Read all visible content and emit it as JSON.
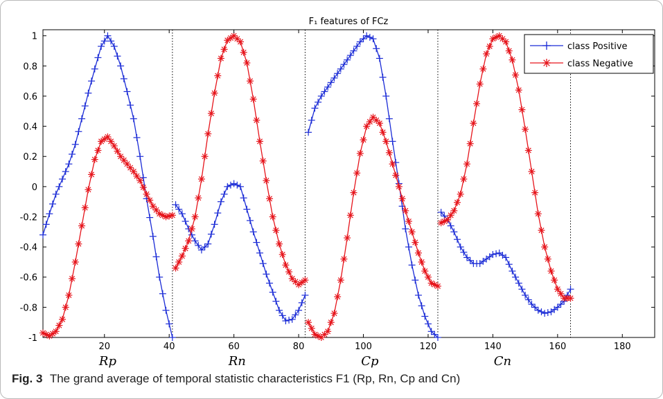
{
  "caption": {
    "fig_label": "Fig. 3",
    "text": "The grand average of temporal statistic characteristics F1 (Rp, Rn, Cp and Cn)"
  },
  "chart_data": {
    "type": "line",
    "title": "F₁ features of FCz",
    "xlabel": "",
    "ylabel": "",
    "xlim": [
      1,
      190
    ],
    "ylim": [
      -1,
      1.04
    ],
    "xticks": [
      20,
      40,
      60,
      80,
      100,
      120,
      140,
      160,
      180
    ],
    "yticks": [
      -1,
      -0.8,
      -0.6,
      -0.4,
      -0.2,
      0,
      0.2,
      0.4,
      0.6,
      0.8,
      1
    ],
    "ytick_labels": [
      "-1",
      "-0.8",
      "-0.6",
      "-0.4",
      "-0.2",
      "0",
      "0.2",
      "0.4",
      "0.6",
      "0.8",
      "1"
    ],
    "grid": false,
    "legend_position": "top-right",
    "segment_dividers": [
      41,
      82,
      123,
      164
    ],
    "segment_labels": [
      {
        "label": "Rp",
        "x": 21
      },
      {
        "label": "Rn",
        "x": 61
      },
      {
        "label": "Cp",
        "x": 102
      },
      {
        "label": "Cn",
        "x": 143
      }
    ],
    "series": [
      {
        "name": "class Positive",
        "color": "#1a2bd6",
        "marker": "plus",
        "segments": [
          {
            "x": [
              1,
              3,
              5,
              7,
              9,
              11,
              13,
              15,
              17,
              19,
              21,
              23,
              25,
              27,
              29,
              31,
              33,
              35,
              37,
              39,
              41
            ],
            "y": [
              -0.32,
              -0.18,
              -0.05,
              0.05,
              0.15,
              0.28,
              0.45,
              0.62,
              0.78,
              0.93,
              1.0,
              0.93,
              0.8,
              0.63,
              0.45,
              0.2,
              -0.08,
              -0.33,
              -0.6,
              -0.82,
              -1.0
            ]
          },
          {
            "x": [
              42,
              44,
              46,
              48,
              50,
              52,
              54,
              56,
              58,
              60,
              62,
              64,
              66,
              68,
              70,
              72,
              74,
              76,
              78,
              80,
              82
            ],
            "y": [
              -0.12,
              -0.18,
              -0.28,
              -0.36,
              -0.42,
              -0.38,
              -0.25,
              -0.1,
              0.0,
              0.02,
              0.0,
              -0.15,
              -0.3,
              -0.44,
              -0.58,
              -0.7,
              -0.82,
              -0.89,
              -0.88,
              -0.82,
              -0.72
            ]
          },
          {
            "x": [
              83,
              85,
              87,
              89,
              91,
              93,
              95,
              97,
              99,
              101,
              103,
              105,
              107,
              109,
              111,
              113,
              115,
              117,
              119,
              121,
              123
            ],
            "y": [
              0.36,
              0.52,
              0.6,
              0.66,
              0.72,
              0.78,
              0.84,
              0.9,
              0.96,
              1.0,
              0.98,
              0.85,
              0.6,
              0.3,
              0.02,
              -0.28,
              -0.52,
              -0.72,
              -0.86,
              -0.96,
              -1.0
            ]
          },
          {
            "x": [
              124,
              126,
              128,
              130,
              132,
              134,
              136,
              138,
              140,
              142,
              144,
              146,
              148,
              150,
              152,
              154,
              156,
              158,
              160,
              162,
              164
            ],
            "y": [
              -0.17,
              -0.22,
              -0.3,
              -0.4,
              -0.47,
              -0.51,
              -0.51,
              -0.48,
              -0.45,
              -0.44,
              -0.47,
              -0.56,
              -0.64,
              -0.72,
              -0.78,
              -0.82,
              -0.84,
              -0.83,
              -0.8,
              -0.76,
              -0.68
            ]
          }
        ]
      },
      {
        "name": "class Negative",
        "color": "#e6141b",
        "marker": "asterisk",
        "segments": [
          {
            "x": [
              1,
              3,
              5,
              7,
              9,
              11,
              13,
              15,
              17,
              19,
              21,
              23,
              25,
              27,
              29,
              31,
              33,
              35,
              37,
              39,
              41
            ],
            "y": [
              -0.97,
              -0.99,
              -0.96,
              -0.88,
              -0.72,
              -0.5,
              -0.26,
              -0.02,
              0.18,
              0.3,
              0.33,
              0.27,
              0.2,
              0.15,
              0.1,
              0.04,
              -0.05,
              -0.13,
              -0.18,
              -0.2,
              -0.19
            ]
          },
          {
            "x": [
              42,
              44,
              46,
              48,
              50,
              52,
              54,
              56,
              58,
              60,
              62,
              64,
              66,
              68,
              70,
              72,
              74,
              76,
              78,
              80,
              82
            ],
            "y": [
              -0.54,
              -0.46,
              -0.36,
              -0.2,
              0.05,
              0.35,
              0.62,
              0.85,
              0.97,
              1.0,
              0.96,
              0.82,
              0.58,
              0.3,
              0.04,
              -0.2,
              -0.38,
              -0.52,
              -0.61,
              -0.65,
              -0.62
            ]
          },
          {
            "x": [
              83,
              85,
              87,
              89,
              91,
              93,
              95,
              97,
              99,
              101,
              103,
              105,
              107,
              109,
              111,
              113,
              115,
              117,
              119,
              121,
              123
            ],
            "y": [
              -0.9,
              -0.98,
              -1.0,
              -0.96,
              -0.84,
              -0.62,
              -0.34,
              -0.04,
              0.22,
              0.4,
              0.46,
              0.42,
              0.3,
              0.15,
              0.0,
              -0.16,
              -0.3,
              -0.44,
              -0.56,
              -0.64,
              -0.66
            ]
          },
          {
            "x": [
              124,
              126,
              128,
              130,
              132,
              134,
              136,
              138,
              140,
              142,
              144,
              146,
              148,
              150,
              152,
              154,
              156,
              158,
              160,
              162,
              164
            ],
            "y": [
              -0.24,
              -0.22,
              -0.16,
              -0.05,
              0.15,
              0.42,
              0.68,
              0.88,
              0.98,
              1.0,
              0.96,
              0.84,
              0.64,
              0.38,
              0.1,
              -0.18,
              -0.4,
              -0.56,
              -0.68,
              -0.74,
              -0.74
            ]
          }
        ]
      }
    ]
  }
}
